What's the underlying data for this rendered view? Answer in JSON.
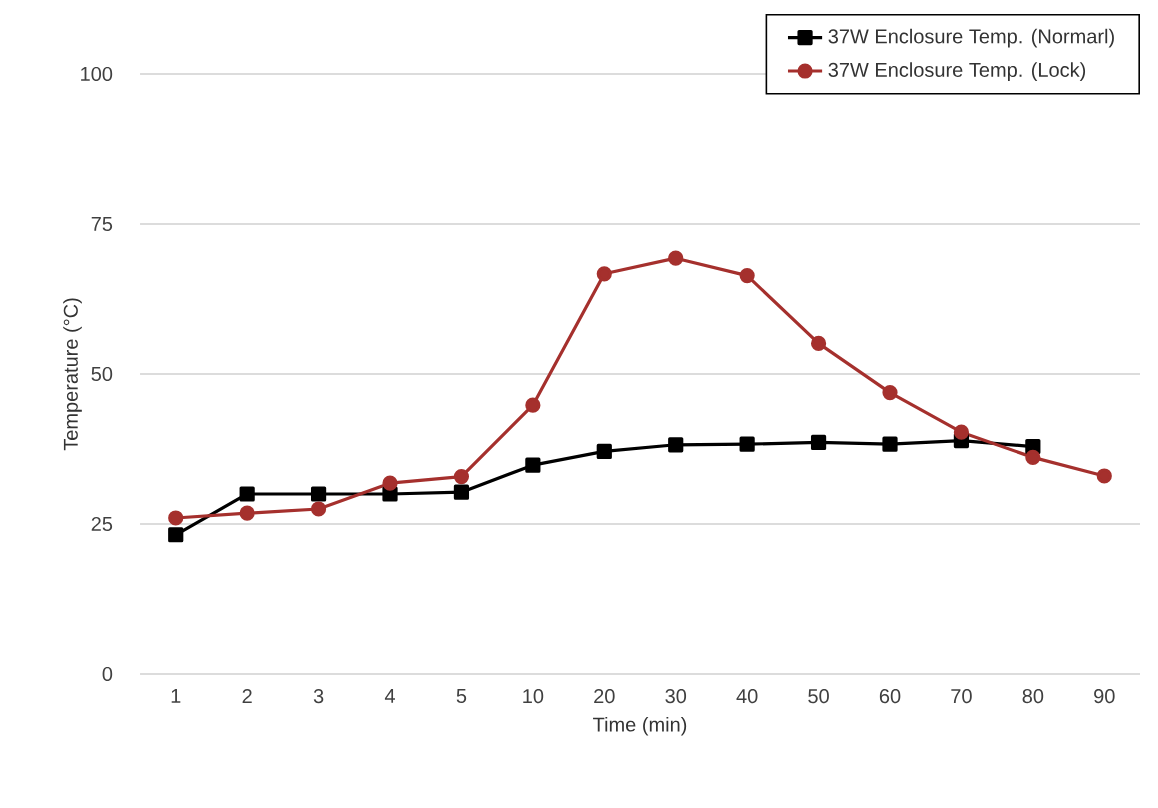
{
  "chart_data": {
    "type": "line",
    "xlabel": "Time   (min)",
    "ylabel": "Temperature     (°C)",
    "categories": [
      "1",
      "2",
      "3",
      "4",
      "5",
      "10",
      "20",
      "30",
      "40",
      "50",
      "60",
      "70",
      "80",
      "90"
    ],
    "ylim": [
      0,
      100
    ],
    "yticks": [
      0,
      25,
      50,
      75,
      100
    ],
    "grid": "y",
    "legend": "top right",
    "line_style": "solid",
    "series": [
      {
        "name": "37W  Enclosure Temp. (Normarl)",
        "color": "#000000",
        "marker": "square",
        "values": [
          23.2,
          30,
          30,
          30,
          30.3,
          34.8,
          37.1,
          38.2,
          38.3,
          38.6,
          38.3,
          38.9,
          37.9,
          null
        ]
      },
      {
        "name": "37W  Enclosure Temp. (Lock)",
        "color": "#a5302d",
        "marker": "circle",
        "values": [
          26,
          26.8,
          27.5,
          31.8,
          32.9,
          44.8,
          66.7,
          69.3,
          66.4,
          55.1,
          46.9,
          40.3,
          36.1,
          33
        ]
      }
    ]
  }
}
